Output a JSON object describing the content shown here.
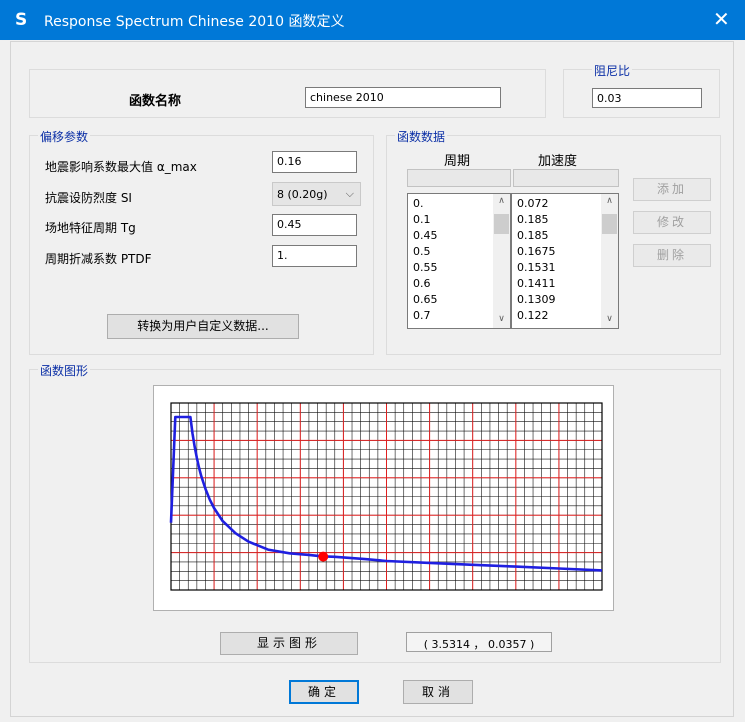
{
  "window": {
    "app_icon": "S",
    "title": "Response Spectrum Chinese 2010 函数定义",
    "close": "✕"
  },
  "function_name": {
    "label": "函数名称",
    "value": "chinese 2010"
  },
  "damping": {
    "legend": "阻尼比",
    "value": "0.03"
  },
  "params": {
    "legend": "偏移参数",
    "alpha_max_label": "地震影响系数最大值 α_max",
    "alpha_max_value": "0.16",
    "si_label": "抗震设防烈度 SI",
    "si_value": "8 (0.20g)",
    "tg_label": "场地特征周期 Tg",
    "tg_value": "0.45",
    "ptdf_label": "周期折减系数 PTDF",
    "ptdf_value": "1.",
    "convert_button": "转换为用户自定义数据..."
  },
  "function_data": {
    "legend": "函数数据",
    "period_header": "周期",
    "accel_header": "加速度",
    "periods": [
      "0.",
      "0.1",
      "0.45",
      "0.5",
      "0.55",
      "0.6",
      "0.65",
      "0.7"
    ],
    "accels": [
      "0.072",
      "0.185",
      "0.185",
      "0.1675",
      "0.1531",
      "0.1411",
      "0.1309",
      "0.122"
    ],
    "add_button": "添加",
    "modify_button": "修改",
    "delete_button": "删除"
  },
  "graph": {
    "legend": "函数图形",
    "show_button": "显示图形",
    "coord_readout": "( 3.5314 ， 0.0357 )"
  },
  "ok_button": "确定",
  "cancel_button": "取消",
  "chart_data": {
    "type": "line",
    "xlim": [
      0,
      10
    ],
    "ylim": [
      0,
      0.2
    ],
    "grid": true,
    "colors": {
      "line": "#1f1fe0",
      "major_grid": "#e02020",
      "minor_grid": "#111111",
      "marker": "#ff0000"
    },
    "series": [
      {
        "x": [
          0,
          0.1,
          0.45,
          0.5,
          0.55,
          0.6,
          0.65,
          0.7,
          0.8,
          0.9,
          1.0,
          1.2,
          1.5,
          1.8,
          2.25,
          2.75,
          3.2,
          3.5,
          3.8,
          4.5,
          5.0,
          6.0,
          7.0,
          8.0,
          9.0,
          10.0
        ],
        "y": [
          0.072,
          0.185,
          0.185,
          0.1675,
          0.1531,
          0.1411,
          0.1309,
          0.122,
          0.108,
          0.0966,
          0.0876,
          0.0737,
          0.0606,
          0.0517,
          0.0432,
          0.0392,
          0.0375,
          0.036,
          0.0355,
          0.033,
          0.031,
          0.029,
          0.027,
          0.025,
          0.023,
          0.021
        ]
      }
    ],
    "marker": {
      "x": 3.5314,
      "y": 0.0357
    }
  }
}
